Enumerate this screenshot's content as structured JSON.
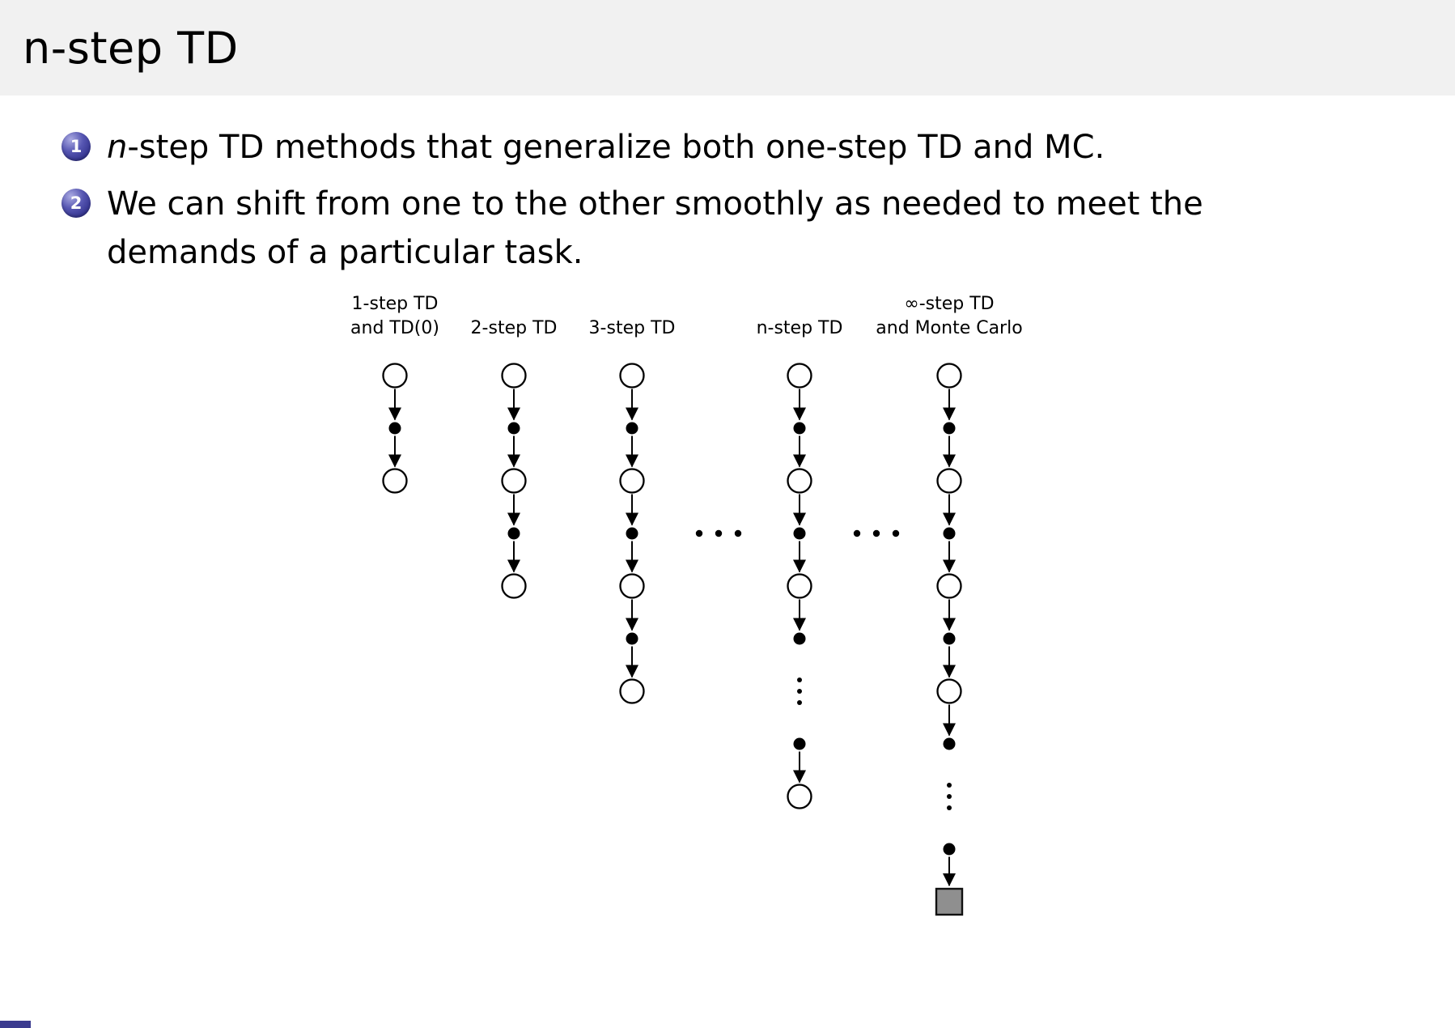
{
  "slide": {
    "title": "n-step TD",
    "header_bg": "#f1f1f1",
    "badge_color": "#1d1d77",
    "footer_accent_color": "#3b3b8f",
    "bullets": [
      {
        "badge": "1",
        "italic_prefix": "n",
        "text": "-step TD methods that generalize both one-step TD and MC."
      },
      {
        "badge": "2",
        "lines": [
          "We can shift from one to the other smoothly as needed to meet the",
          "demands of a particular task."
        ]
      }
    ]
  },
  "diagram": {
    "columns": [
      {
        "type": "chain",
        "label_lines": [
          "1-step TD",
          "and TD(0)"
        ],
        "nodes": [
          "open",
          "filled",
          "open"
        ]
      },
      {
        "type": "chain",
        "label_lines": [
          "2-step TD"
        ],
        "nodes": [
          "open",
          "filled",
          "open",
          "filled",
          "open"
        ]
      },
      {
        "type": "chain",
        "label_lines": [
          "3-step TD"
        ],
        "nodes": [
          "open",
          "filled",
          "open",
          "filled",
          "open",
          "filled",
          "open"
        ]
      },
      {
        "type": "ellipsis"
      },
      {
        "type": "chain",
        "label_lines": [
          "n-step TD"
        ],
        "nodes": [
          "open",
          "filled",
          "open",
          "filled",
          "open",
          "filled",
          "vdots",
          "filled",
          "open"
        ]
      },
      {
        "type": "ellipsis"
      },
      {
        "type": "chain",
        "label_lines": [
          "∞-step TD",
          "and Monte Carlo"
        ],
        "nodes": [
          "open",
          "filled",
          "open",
          "filled",
          "open",
          "filled",
          "open",
          "filled",
          "vdots",
          "filled",
          "square"
        ]
      }
    ]
  }
}
